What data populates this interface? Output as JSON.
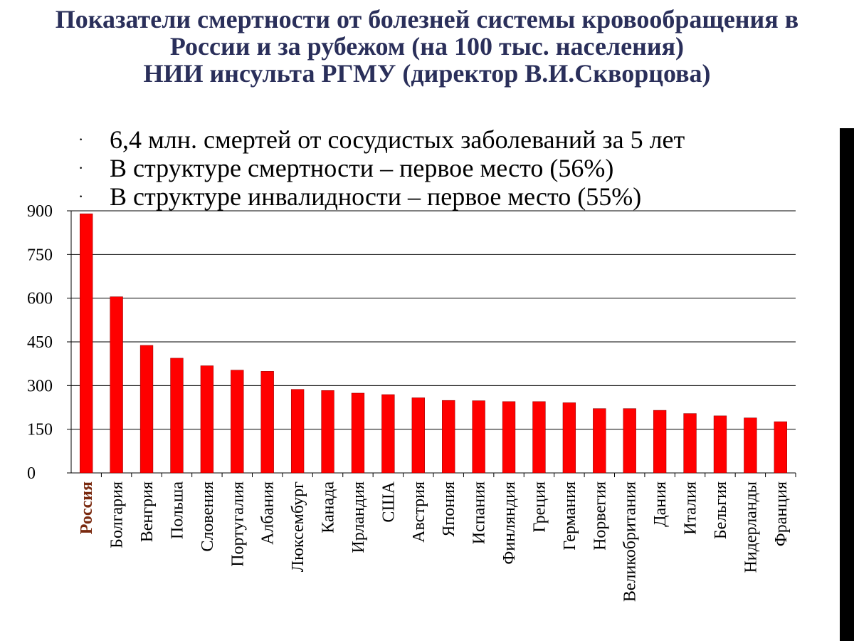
{
  "title": {
    "line1": "Показатели смертности от болезней системы кровообращения в",
    "line2": "России и за рубежом (на 100 тыс. населения)",
    "line3": "НИИ инсульта РГМУ (директор В.И.Скворцова)"
  },
  "bullets": [
    "6,4 млн. смертей от сосудистых заболеваний за 5 лет",
    "В структуре смертности – первое место (56%)",
    "В структуре инвалидности – первое место (55%)"
  ],
  "bullet_glyph": "·",
  "colors": {
    "bar": "#ff0000",
    "title": "#2a2f5a",
    "highlight_label": "#7a2a10",
    "edge_bar": "#000000"
  },
  "chart_data": {
    "type": "bar",
    "title": "",
    "xlabel": "",
    "ylabel": "",
    "ylim": [
      0,
      900
    ],
    "yticks": [
      0,
      150,
      300,
      450,
      600,
      750,
      900
    ],
    "grid": true,
    "highlight_category": "Россия",
    "categories": [
      "Россия",
      "Болгария",
      "Венгрия",
      "Польша",
      "Словения",
      "Португалия",
      "Албания",
      "Люксембург",
      "Канада",
      "Ирландия",
      "США",
      "Австрия",
      "Япония",
      "Испания",
      "Финляндия",
      "Греция",
      "Германия",
      "Норвегия",
      "Великобритания",
      "Дания",
      "Италия",
      "Бельгия",
      "Нидерланды",
      "Франция"
    ],
    "values": [
      890,
      605,
      438,
      394,
      368,
      353,
      349,
      287,
      283,
      274,
      269,
      258,
      249,
      248,
      245,
      245,
      241,
      221,
      221,
      215,
      204,
      196,
      189,
      176
    ]
  }
}
